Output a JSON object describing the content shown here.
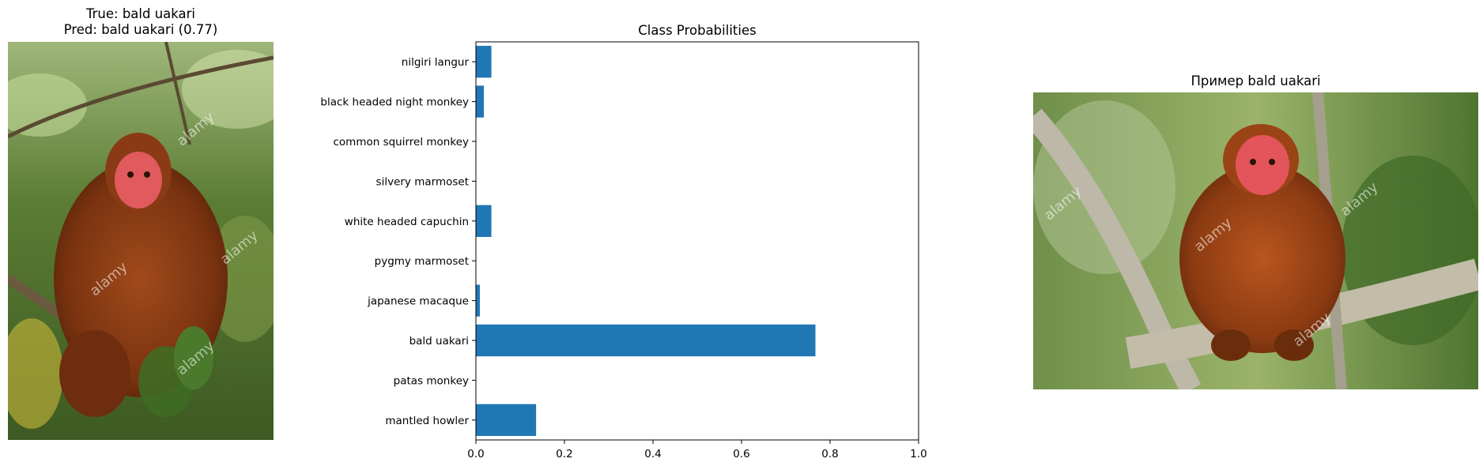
{
  "left_panel": {
    "title_line1": "True: bald uakari",
    "title_line2": "Pred: bald uakari (0.77)",
    "image_icon": "monkey-photo",
    "watermark": "alamy"
  },
  "right_panel": {
    "title": "Пример bald uakari",
    "image_icon": "monkey-photo",
    "watermark": "alamy"
  },
  "chart_data": {
    "type": "bar",
    "orientation": "horizontal",
    "title": "Class Probabilities",
    "xlabel": "",
    "ylabel": "",
    "xlim": [
      0,
      1.0
    ],
    "xticks": [
      "0.0",
      "0.2",
      "0.4",
      "0.6",
      "0.8",
      "1.0"
    ],
    "categories": [
      "nilgiri langur",
      "black headed night monkey",
      "common squirrel monkey",
      "silvery marmoset",
      "white headed capuchin",
      "pygmy marmoset",
      "japanese macaque",
      "bald uakari",
      "patas monkey",
      "mantled howler"
    ],
    "values": [
      0.035,
      0.018,
      0.0,
      0.0,
      0.035,
      0.0,
      0.009,
      0.767,
      0.0,
      0.136
    ],
    "bar_color": "#1f77b4",
    "grid": false
  }
}
